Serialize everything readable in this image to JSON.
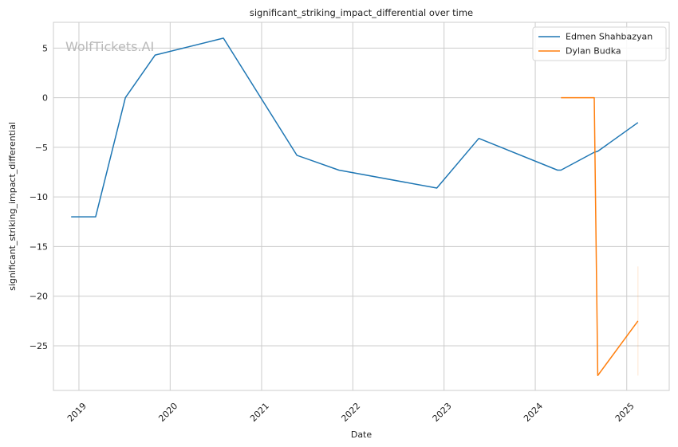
{
  "chart_data": {
    "type": "line",
    "title": "significant_striking_impact_differential over time",
    "xlabel": "Date",
    "ylabel": "significant_striking_impact_differential",
    "watermark": "WolfTickets.AI",
    "grid": true,
    "legend_position": "top-right",
    "ylim": [
      -29.5,
      7.6
    ],
    "xlim": [
      "2018-09-21",
      "2025-06-20"
    ],
    "yticks": [
      5,
      0,
      -5,
      -10,
      -15,
      -20,
      -25
    ],
    "ytick_labels": [
      "5",
      "0",
      "−5",
      "−10",
      "−15",
      "−20",
      "−25"
    ],
    "xticks": [
      "2019-01-01",
      "2020-01-01",
      "2021-01-01",
      "2022-01-01",
      "2023-01-01",
      "2024-01-01",
      "2025-01-01"
    ],
    "xtick_labels": [
      "2019",
      "2020",
      "2021",
      "2022",
      "2023",
      "2024",
      "2025"
    ],
    "series": [
      {
        "name": "Edmen Shahbazyan",
        "color": "#1f77b4",
        "x": [
          "2018-12-01",
          "2019-03-09",
          "2019-07-06",
          "2019-11-02",
          "2020-08-01",
          "2021-05-22",
          "2021-11-06",
          "2022-12-03",
          "2023-05-20",
          "2024-03-30",
          "2024-04-13",
          "2024-08-24",
          "2024-09-07",
          "2025-02-15"
        ],
        "y": [
          -12.0,
          -12.0,
          0.0,
          4.3,
          6.0,
          -5.8,
          -7.3,
          -9.1,
          -4.1,
          -7.3,
          -7.3,
          -5.5,
          -5.4,
          -2.5
        ]
      },
      {
        "name": "Dylan Budka",
        "color": "#ff7f0e",
        "x": [
          "2024-04-13",
          "2024-08-24",
          "2024-09-07",
          "2025-02-15"
        ],
        "y": [
          0.0,
          0.0,
          -28.0,
          -22.5
        ]
      }
    ],
    "error_band": {
      "color": "#ff7f0e",
      "x": "2025-02-15",
      "y_range": [
        -28.0,
        -17.0
      ]
    }
  }
}
